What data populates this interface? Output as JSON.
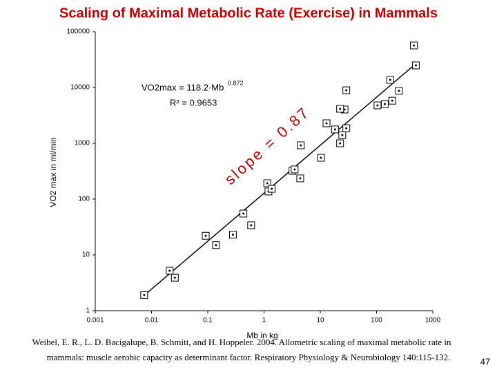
{
  "chart_data": {
    "type": "scatter",
    "title": "Scaling of Maximal Metabolic Rate (Exercise) in Mammals",
    "x_label": "Mb in kg",
    "y_label": "VO2 max in ml/min",
    "equation": "VO2max = 118.2·Mb",
    "equation_exponent": "0.872",
    "r_squared": "R² = 0.9653",
    "annotation": "slope = 0.87",
    "citation": [
      "Weibel, E. R., L. D. Bacigalupe, B. Schmitt, and H. Hoppeler. 2004. Allometric scaling of maximal metabolic rate in",
      "mammals: muscle aerobic capacity as determinant factor. Respiratory Physiology & Neurobiology 140:115-132."
    ],
    "page_number": "47",
    "log_x": true,
    "log_y": true,
    "xlim": [
      0.001,
      1000
    ],
    "ylim": [
      1,
      100000
    ],
    "xticks": [
      0.001,
      0.01,
      0.1,
      1,
      10,
      100,
      1000
    ],
    "yticks": [
      1,
      10,
      100,
      1000,
      10000,
      100000
    ],
    "marker_color": "#000000",
    "x": [
      0.0074,
      0.021,
      0.026,
      0.092,
      0.14,
      0.43,
      0.28,
      0.59,
      1.14,
      1.2,
      1.37,
      3.2,
      3.5,
      4.4,
      4.5,
      10.3,
      12.9,
      18.3,
      22.5,
      24.6,
      29,
      27,
      29,
      104,
      140,
      190,
      175,
      250,
      500,
      460,
      22.5
    ],
    "values": [
      1.9,
      5.2,
      3.9,
      22,
      15,
      55,
      23,
      34,
      192,
      137,
      153,
      321,
      340,
      235,
      918,
      550,
      2280,
      1770,
      1000,
      1400,
      1860,
      4030,
      8900,
      4780,
      5050,
      5800,
      13700,
      8700,
      24900,
      56600,
      4150
    ],
    "fit_line": {
      "color": "#000000",
      "x": [
        0.0066,
        537
      ],
      "y": [
        1.7,
        28400
      ]
    }
  }
}
